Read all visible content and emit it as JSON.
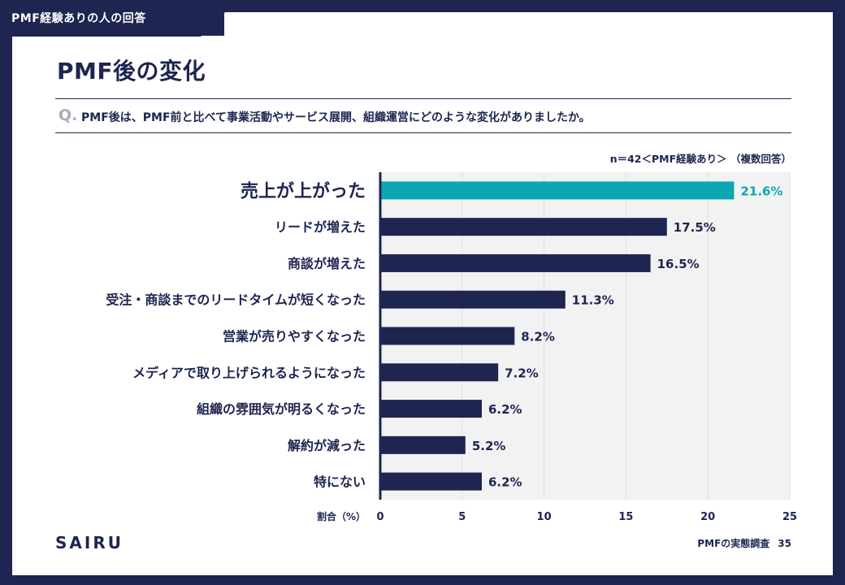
{
  "header": {
    "tab_label": "PMF経験ありの人の回答"
  },
  "page_title": "PMF後の変化",
  "question": {
    "prefix": "Q.",
    "text": "PMF後は、PMF前と比べて事業活動やサービス展開、組織運営にどのような変化がありましたか。"
  },
  "sample_note": "n＝42＜PMF経験あり＞ （複数回答）",
  "footer": {
    "brand": "SAIRU",
    "survey_name": "PMFの実態調査",
    "page_number": "35"
  },
  "colors": {
    "navy": "#1d2550",
    "highlight": "#0ba7b3",
    "plot_bg": "#f2f2f2",
    "grid": "#e0e0e0"
  },
  "chart_data": {
    "type": "bar",
    "orientation": "horizontal",
    "categories": [
      "売上が上がった",
      "リードが増えた",
      "商談が増えた",
      "受注・商談までのリードタイムが短くなった",
      "営業が売りやすくなった",
      "メディアで取り上げられるようになった",
      "組織の雰囲気が明るくなった",
      "解約が減った",
      "特にない"
    ],
    "values": [
      21.6,
      17.5,
      16.5,
      11.3,
      8.2,
      7.2,
      6.2,
      5.2,
      6.2
    ],
    "value_labels": [
      "21.6%",
      "17.5%",
      "16.5%",
      "11.3%",
      "8.2%",
      "7.2%",
      "6.2%",
      "5.2%",
      "6.2%"
    ],
    "highlight_index": 0,
    "xlabel": "割合（%）",
    "xlim": [
      0,
      25
    ],
    "xticks": [
      0,
      5,
      10,
      15,
      20,
      25
    ],
    "grid": true
  }
}
